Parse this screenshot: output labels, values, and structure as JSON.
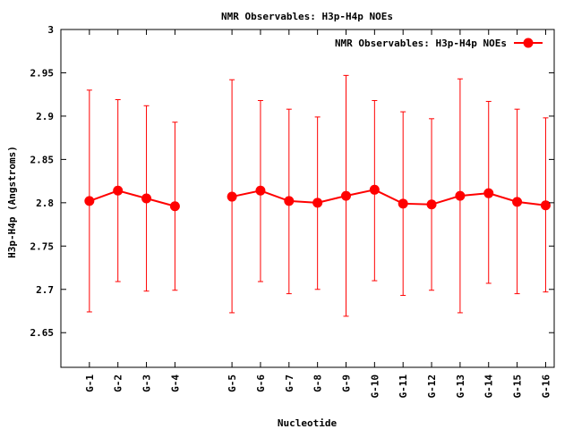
{
  "chart_data": {
    "type": "line",
    "title": "NMR Observables: H3p-H4p NOEs",
    "xlabel": "Nucleotide",
    "ylabel": "H3p-H4p (Angstroms)",
    "ylim": [
      2.61,
      3.0
    ],
    "yticks": [
      2.65,
      2.7,
      2.75,
      2.8,
      2.85,
      2.9,
      2.95,
      3
    ],
    "ytick_labels": [
      "2.65",
      "2.7",
      "2.75",
      "2.8",
      "2.85",
      "2.9",
      "2.95",
      "3"
    ],
    "xlim": [
      0,
      17.3
    ],
    "grid": false,
    "legend_position": "top-right",
    "series": [
      {
        "name": "NMR Observables: H3p-H4p NOEs",
        "color": "#ff0000",
        "marker": "circle",
        "points": [
          {
            "label": "G-1",
            "x": 1,
            "y": 2.802,
            "ylow": 2.674,
            "yhigh": 2.93
          },
          {
            "label": "G-2",
            "x": 2,
            "y": 2.814,
            "ylow": 2.709,
            "yhigh": 2.919
          },
          {
            "label": "G-3",
            "x": 3,
            "y": 2.805,
            "ylow": 2.698,
            "yhigh": 2.912
          },
          {
            "label": "G-4",
            "x": 4,
            "y": 2.796,
            "ylow": 2.699,
            "yhigh": 2.893
          },
          {
            "label": "G-5",
            "x": 6,
            "y": 2.807,
            "ylow": 2.673,
            "yhigh": 2.942
          },
          {
            "label": "G-6",
            "x": 7,
            "y": 2.814,
            "ylow": 2.709,
            "yhigh": 2.918
          },
          {
            "label": "G-7",
            "x": 8,
            "y": 2.802,
            "ylow": 2.695,
            "yhigh": 2.908
          },
          {
            "label": "G-8",
            "x": 9,
            "y": 2.8,
            "ylow": 2.7,
            "yhigh": 2.899
          },
          {
            "label": "G-9",
            "x": 10,
            "y": 2.808,
            "ylow": 2.669,
            "yhigh": 2.947
          },
          {
            "label": "G-10",
            "x": 11,
            "y": 2.815,
            "ylow": 2.71,
            "yhigh": 2.918
          },
          {
            "label": "G-11",
            "x": 12,
            "y": 2.799,
            "ylow": 2.693,
            "yhigh": 2.905
          },
          {
            "label": "G-12",
            "x": 13,
            "y": 2.798,
            "ylow": 2.699,
            "yhigh": 2.897
          },
          {
            "label": "G-13",
            "x": 14,
            "y": 2.808,
            "ylow": 2.673,
            "yhigh": 2.943
          },
          {
            "label": "G-14",
            "x": 15,
            "y": 2.811,
            "ylow": 2.707,
            "yhigh": 2.917
          },
          {
            "label": "G-15",
            "x": 16,
            "y": 2.801,
            "ylow": 2.695,
            "yhigh": 2.908
          },
          {
            "label": "G-16",
            "x": 17,
            "y": 2.797,
            "ylow": 2.697,
            "yhigh": 2.898
          }
        ],
        "segments": [
          [
            0,
            3
          ],
          [
            4,
            15
          ]
        ]
      }
    ]
  }
}
